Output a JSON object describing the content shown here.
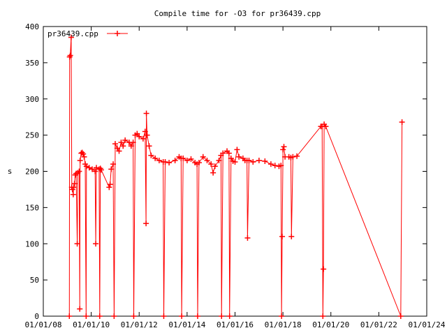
{
  "chart_data": {
    "type": "line",
    "title": "Compile time for -O3 for pr36439.cpp",
    "xlabel": "",
    "ylabel": "s",
    "xlim": [
      "2008-01-01",
      "2024-01-01"
    ],
    "ylim": [
      0,
      400
    ],
    "grid": false,
    "legend_placement": "top-left",
    "x_ticks": [
      "01/01/08",
      "01/01/10",
      "01/01/12",
      "01/01/14",
      "01/01/16",
      "01/01/18",
      "01/01/20",
      "01/01/22",
      "01/01/24"
    ],
    "y_ticks": [
      "0",
      "50",
      "100",
      "150",
      "200",
      "250",
      "300",
      "350",
      "400"
    ],
    "series": [
      {
        "name": "pr36439.cpp",
        "color": "#ff0000",
        "marker": "plus",
        "points": [
          [
            "2009-02-01",
            0
          ],
          [
            "2009-02-05",
            358
          ],
          [
            "2009-02-15",
            360
          ],
          [
            "2009-03-01",
            385
          ],
          [
            "2009-03-10",
            178
          ],
          [
            "2009-03-20",
            175
          ],
          [
            "2009-04-01",
            168
          ],
          [
            "2009-04-10",
            178
          ],
          [
            "2009-04-20",
            183
          ],
          [
            "2009-05-01",
            195
          ],
          [
            "2009-05-15",
            197
          ],
          [
            "2009-06-01",
            100
          ],
          [
            "2009-06-10",
            198
          ],
          [
            "2009-07-01",
            200
          ],
          [
            "2009-07-10",
            10
          ],
          [
            "2009-07-15",
            215
          ],
          [
            "2009-08-01",
            225
          ],
          [
            "2009-08-15",
            226
          ],
          [
            "2009-09-01",
            224
          ],
          [
            "2009-09-15",
            220
          ],
          [
            "2009-10-01",
            210
          ],
          [
            "2009-10-15",
            0
          ],
          [
            "2009-10-20",
            207
          ],
          [
            "2009-12-01",
            205
          ],
          [
            "2010-01-15",
            203
          ],
          [
            "2010-03-01",
            200
          ],
          [
            "2010-03-10",
            100
          ],
          [
            "2010-03-20",
            205
          ],
          [
            "2010-05-01",
            203
          ],
          [
            "2010-05-10",
            0
          ],
          [
            "2010-05-20",
            204
          ],
          [
            "2010-06-01",
            202
          ],
          [
            "2010-10-01",
            178
          ],
          [
            "2010-10-15",
            182
          ],
          [
            "2010-11-01",
            203
          ],
          [
            "2010-12-01",
            210
          ],
          [
            "2010-12-15",
            0
          ],
          [
            "2011-01-01",
            238
          ],
          [
            "2011-02-01",
            232
          ],
          [
            "2011-03-01",
            228
          ],
          [
            "2011-04-01",
            240
          ],
          [
            "2011-05-01",
            235
          ],
          [
            "2011-06-01",
            243
          ],
          [
            "2011-08-01",
            240
          ],
          [
            "2011-09-01",
            235
          ],
          [
            "2011-10-01",
            240
          ],
          [
            "2011-10-10",
            0
          ],
          [
            "2011-11-01",
            250
          ],
          [
            "2011-12-01",
            252
          ],
          [
            "2012-01-01",
            248
          ],
          [
            "2012-03-01",
            245
          ],
          [
            "2012-04-01",
            255
          ],
          [
            "2012-04-15",
            128
          ],
          [
            "2012-04-20",
            280
          ],
          [
            "2012-05-01",
            250
          ],
          [
            "2012-06-01",
            235
          ],
          [
            "2012-07-01",
            222
          ],
          [
            "2012-09-01",
            218
          ],
          [
            "2012-11-01",
            215
          ],
          [
            "2013-01-01",
            213
          ],
          [
            "2013-01-10",
            0
          ],
          [
            "2013-02-01",
            213
          ],
          [
            "2013-04-01",
            212
          ],
          [
            "2013-07-01",
            215
          ],
          [
            "2013-09-01",
            220
          ],
          [
            "2013-10-01",
            218
          ],
          [
            "2013-10-10",
            0
          ],
          [
            "2013-11-01",
            218
          ],
          [
            "2014-01-01",
            215
          ],
          [
            "2014-03-01",
            217
          ],
          [
            "2014-05-01",
            212
          ],
          [
            "2014-06-01",
            210
          ],
          [
            "2014-06-10",
            0
          ],
          [
            "2014-07-01",
            212
          ],
          [
            "2014-09-01",
            220
          ],
          [
            "2014-11-01",
            215
          ],
          [
            "2015-01-01",
            210
          ],
          [
            "2015-02-01",
            198
          ],
          [
            "2015-03-01",
            207
          ],
          [
            "2015-05-01",
            215
          ],
          [
            "2015-06-01",
            222
          ],
          [
            "2015-06-10",
            0
          ],
          [
            "2015-07-01",
            225
          ],
          [
            "2015-09-01",
            228
          ],
          [
            "2015-10-01",
            225
          ],
          [
            "2015-10-10",
            0
          ],
          [
            "2015-11-01",
            218
          ],
          [
            "2015-12-01",
            214
          ],
          [
            "2016-01-01",
            213
          ],
          [
            "2016-02-01",
            230
          ],
          [
            "2016-03-01",
            220
          ],
          [
            "2016-05-01",
            218
          ],
          [
            "2016-06-01",
            215
          ],
          [
            "2016-07-01",
            215
          ],
          [
            "2016-07-10",
            108
          ],
          [
            "2016-08-01",
            215
          ],
          [
            "2016-10-01",
            213
          ],
          [
            "2017-01-01",
            215
          ],
          [
            "2017-04-01",
            214
          ],
          [
            "2017-07-01",
            210
          ],
          [
            "2017-09-01",
            208
          ],
          [
            "2017-11-01",
            207
          ],
          [
            "2017-12-01",
            208
          ],
          [
            "2017-12-10",
            0
          ],
          [
            "2017-12-20",
            110
          ],
          [
            "2018-01-01",
            230
          ],
          [
            "2018-01-15",
            234
          ],
          [
            "2018-02-01",
            220
          ],
          [
            "2018-04-01",
            220
          ],
          [
            "2018-05-01",
            219
          ],
          [
            "2018-05-10",
            110
          ],
          [
            "2018-06-01",
            220
          ],
          [
            "2018-08-01",
            221
          ],
          [
            "2019-08-01",
            262
          ],
          [
            "2019-08-20",
            262
          ],
          [
            "2019-09-01",
            0
          ],
          [
            "2019-09-10",
            65
          ],
          [
            "2019-09-20",
            265
          ],
          [
            "2019-10-15",
            262
          ],
          [
            "2022-12-01",
            0
          ],
          [
            "2022-12-20",
            268
          ]
        ]
      }
    ]
  }
}
